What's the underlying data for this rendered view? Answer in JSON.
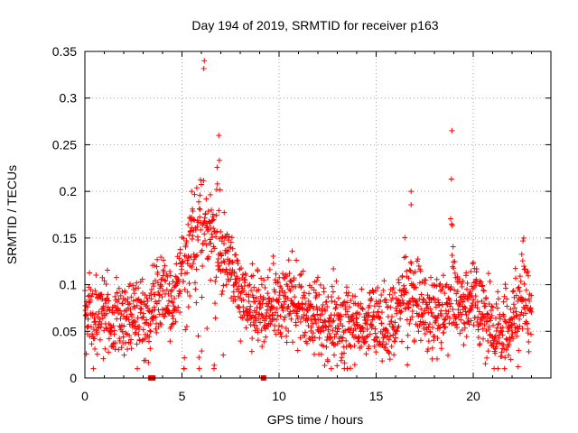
{
  "chart_data": {
    "type": "scatter",
    "title": "Day 194 of 2019, SRMTID for receiver p163",
    "xlabel": "GPS time / hours",
    "ylabel": "SRMTID / TECUs",
    "xlim": [
      0,
      24
    ],
    "ylim": [
      0,
      0.35
    ],
    "xticks": [
      0,
      5,
      10,
      15,
      20
    ],
    "xtick_labels": [
      "0",
      "5",
      "10",
      "15",
      "20"
    ],
    "yticks": [
      0,
      0.05,
      0.1,
      0.15,
      0.2,
      0.25,
      0.3,
      0.35
    ],
    "ytick_labels": [
      "0",
      "0.05",
      "0.1",
      "0.15",
      "0.2",
      "0.25",
      "0.3",
      "0.35"
    ],
    "grid": true,
    "marker": "plus",
    "series": [
      {
        "name": "SRMTID",
        "color": "#ff0000",
        "profile": [
          {
            "x": 0.0,
            "y": 0.07
          },
          {
            "x": 1.0,
            "y": 0.068
          },
          {
            "x": 2.0,
            "y": 0.067
          },
          {
            "x": 2.5,
            "y": 0.065
          },
          {
            "x": 3.0,
            "y": 0.06
          },
          {
            "x": 3.5,
            "y": 0.085
          },
          {
            "x": 4.0,
            "y": 0.09
          },
          {
            "x": 4.5,
            "y": 0.075
          },
          {
            "x": 5.0,
            "y": 0.12
          },
          {
            "x": 5.5,
            "y": 0.16
          },
          {
            "x": 6.0,
            "y": 0.17
          },
          {
            "x": 6.5,
            "y": 0.16
          },
          {
            "x": 7.0,
            "y": 0.14
          },
          {
            "x": 7.5,
            "y": 0.12
          },
          {
            "x": 8.0,
            "y": 0.09
          },
          {
            "x": 9.0,
            "y": 0.075
          },
          {
            "x": 10.0,
            "y": 0.08
          },
          {
            "x": 11.0,
            "y": 0.075
          },
          {
            "x": 12.0,
            "y": 0.065
          },
          {
            "x": 13.0,
            "y": 0.055
          },
          {
            "x": 14.0,
            "y": 0.055
          },
          {
            "x": 15.0,
            "y": 0.06
          },
          {
            "x": 16.0,
            "y": 0.065
          },
          {
            "x": 16.5,
            "y": 0.1
          },
          {
            "x": 17.0,
            "y": 0.09
          },
          {
            "x": 17.5,
            "y": 0.07
          },
          {
            "x": 18.0,
            "y": 0.065
          },
          {
            "x": 18.5,
            "y": 0.07
          },
          {
            "x": 19.0,
            "y": 0.09
          },
          {
            "x": 19.5,
            "y": 0.08
          },
          {
            "x": 20.0,
            "y": 0.085
          },
          {
            "x": 20.5,
            "y": 0.07
          },
          {
            "x": 21.0,
            "y": 0.055
          },
          {
            "x": 21.5,
            "y": 0.05
          },
          {
            "x": 22.0,
            "y": 0.06
          },
          {
            "x": 22.5,
            "y": 0.085
          },
          {
            "x": 23.0,
            "y": 0.08
          }
        ],
        "spikes": [
          {
            "x": 6.15,
            "y": 0.34,
            "width": 0.15
          },
          {
            "x": 6.9,
            "y": 0.26,
            "width": 0.25
          },
          {
            "x": 5.5,
            "y": 0.2,
            "width": 0.4
          },
          {
            "x": 16.8,
            "y": 0.2,
            "width": 0.2
          },
          {
            "x": 18.9,
            "y": 0.265,
            "width": 0.12
          },
          {
            "x": 22.6,
            "y": 0.15,
            "width": 0.3
          }
        ],
        "scatter_spread": 0.02,
        "x_step_hours": 0.0125
      }
    ],
    "outliers": [
      {
        "x": 3.4,
        "y": 0.0
      },
      {
        "x": 3.5,
        "y": 0.0
      },
      {
        "x": 9.2,
        "y": 0.0
      }
    ]
  }
}
